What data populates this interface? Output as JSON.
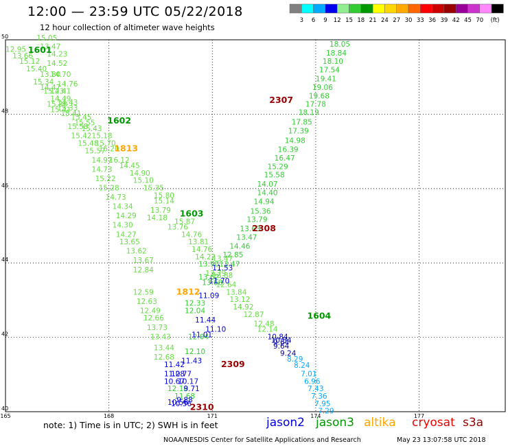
{
  "title": "12:00 — 23:59 UTC 05/22/2018",
  "subtitle": "12 hour collection of altimeter wave heights",
  "legend": {
    "unit": "(ft)",
    "ticks": [
      "3",
      "6",
      "9",
      "12",
      "15",
      "18",
      "21",
      "24",
      "27",
      "30",
      "33",
      "36",
      "39",
      "42",
      "45",
      "70"
    ],
    "colors": [
      "#808080",
      "#00ffff",
      "#00aaff",
      "#0000ee",
      "#90ee90",
      "#33cc33",
      "#009900",
      "#ffff00",
      "#ffd700",
      "#ffaa00",
      "#ff6600",
      "#ff0000",
      "#cc0000",
      "#990000",
      "#990099",
      "#cc33cc",
      "#ff88ff",
      "#000000"
    ]
  },
  "notes": "note:  1) Time is in UTC;  2) SWH is in feet",
  "satellites": [
    {
      "name": "jason2",
      "color": "#0000dd"
    },
    {
      "name": "jason3",
      "color": "#009900"
    },
    {
      "name": "altika",
      "color": "#ffa500"
    },
    {
      "name": "cryosat",
      "color": "#ee0000"
    },
    {
      "name": "s3a",
      "color": "#990000"
    }
  ],
  "footer": {
    "left": "NOAA/NESDIS Center for Satellite Applications and Research",
    "right": "May 23 13:07:58 UTC 2018"
  },
  "chart_data": {
    "type": "scatter",
    "x_ticks": [
      "165",
      "168",
      "171",
      "174",
      "177"
    ],
    "y_ticks": [
      "50",
      "48",
      "46",
      "44",
      "42",
      "40"
    ],
    "xlim": [
      165,
      179.5
    ],
    "ylim": [
      40,
      50
    ],
    "grid": true,
    "pass_labels": [
      {
        "text": "1601",
        "x": 166.0,
        "y": 49.65,
        "color": "#009900"
      },
      {
        "text": "1602",
        "x": 168.3,
        "y": 47.75,
        "color": "#009900"
      },
      {
        "text": "1813",
        "x": 168.5,
        "y": 47.0,
        "color": "#ffa500"
      },
      {
        "text": "1603",
        "x": 170.4,
        "y": 45.25,
        "color": "#009900"
      },
      {
        "text": "2307",
        "x": 173.0,
        "y": 48.3,
        "color": "#990000"
      },
      {
        "text": "2308",
        "x": 172.5,
        "y": 44.85,
        "color": "#990000"
      },
      {
        "text": "1812",
        "x": 170.3,
        "y": 43.15,
        "color": "#ffa500"
      },
      {
        "text": "1604",
        "x": 174.1,
        "y": 42.5,
        "color": "#009900"
      },
      {
        "text": "2309",
        "x": 171.6,
        "y": 41.2,
        "color": "#990000"
      },
      {
        "text": "2310",
        "x": 170.7,
        "y": 40.05,
        "color": "#990000"
      }
    ],
    "tracks": [
      {
        "name": "1601",
        "color": "#66dd44",
        "points": [
          [
            166.2,
            49.98,
            "15.05"
          ],
          [
            166.3,
            49.75,
            "13.47"
          ],
          [
            165.3,
            49.68,
            "12.95"
          ],
          [
            165.5,
            49.5,
            "13.66"
          ],
          [
            165.7,
            49.35,
            "15.12"
          ],
          [
            166.5,
            49.55,
            "14.23"
          ],
          [
            165.9,
            49.15,
            "15.40"
          ],
          [
            166.5,
            49.3,
            "14.52"
          ],
          [
            166.3,
            49.0,
            "13.80"
          ],
          [
            166.6,
            49.0,
            "14.70"
          ],
          [
            166.1,
            48.8,
            "15.34"
          ],
          [
            166.8,
            48.75,
            "14.76"
          ],
          [
            166.3,
            48.65,
            "14.47"
          ],
          [
            166.6,
            48.55,
            "14.41"
          ],
          [
            166.4,
            48.55,
            "15.23"
          ],
          [
            166.6,
            48.35,
            "14.49"
          ],
          [
            166.8,
            48.25,
            "14.43"
          ],
          [
            166.5,
            48.2,
            "15.30"
          ],
          [
            166.8,
            48.1,
            "15.33"
          ],
          [
            166.6,
            48.05,
            "15.41"
          ],
          [
            167.2,
            47.85,
            "15.45"
          ],
          [
            166.9,
            47.95,
            "15.41"
          ],
          [
            167.3,
            47.7,
            "15.55"
          ],
          [
            167.1,
            47.6,
            "15.58"
          ],
          [
            167.5,
            47.55,
            "15.43"
          ],
          [
            167.2,
            47.35,
            "15.42"
          ],
          [
            167.8,
            47.35,
            "15.18"
          ],
          [
            167.4,
            47.15,
            "15.48"
          ],
          [
            167.9,
            47.15,
            "15.70"
          ],
          [
            167.6,
            46.95,
            "15.57"
          ],
          [
            168.0,
            47.0,
            "16.20"
          ],
          [
            168.3,
            46.7,
            "16.12"
          ],
          [
            167.8,
            46.7,
            "14.97"
          ],
          [
            168.6,
            46.55,
            "14.45"
          ],
          [
            167.8,
            46.45,
            "14.73"
          ],
          [
            168.9,
            46.35,
            "14.90"
          ],
          [
            167.9,
            46.2,
            "15.22"
          ],
          [
            169.0,
            46.15,
            "15.10"
          ],
          [
            168.0,
            45.95,
            "15.28"
          ],
          [
            169.3,
            45.95,
            "15.35"
          ],
          [
            169.6,
            45.75,
            "15.80"
          ],
          [
            168.2,
            45.7,
            "14.73"
          ],
          [
            169.6,
            45.6,
            "15.14"
          ],
          [
            168.4,
            45.45,
            "14.34"
          ],
          [
            169.5,
            45.35,
            "13.79"
          ],
          [
            168.5,
            45.2,
            "14.29"
          ],
          [
            169.4,
            45.15,
            "14.18"
          ],
          [
            170.2,
            45.05,
            "15.87"
          ],
          [
            168.4,
            44.95,
            "14.30"
          ],
          [
            170.0,
            44.9,
            "13.76"
          ],
          [
            170.4,
            44.7,
            "14.76"
          ],
          [
            168.5,
            44.7,
            "14.27"
          ],
          [
            170.6,
            44.5,
            "13.81"
          ],
          [
            168.6,
            44.5,
            "13.65"
          ],
          [
            170.7,
            44.3,
            "14.76"
          ],
          [
            168.8,
            44.25,
            "13.62"
          ],
          [
            170.8,
            44.1,
            "14.22"
          ],
          [
            169.0,
            44.0,
            "13.67"
          ],
          [
            171.3,
            44.05,
            "13.47"
          ],
          [
            169.0,
            43.75,
            "12.84"
          ]
        ]
      },
      {
        "name": "2307",
        "color": "#33cc33",
        "points": [
          [
            174.7,
            49.82,
            "18.05"
          ],
          [
            174.6,
            49.58,
            "18.84"
          ],
          [
            174.5,
            49.35,
            "18.10"
          ],
          [
            174.4,
            49.12,
            "17.54"
          ],
          [
            174.3,
            48.88,
            "19.41"
          ],
          [
            174.2,
            48.65,
            "19.06"
          ],
          [
            174.1,
            48.42,
            "19.68"
          ],
          [
            174.0,
            48.2,
            "17.78"
          ],
          [
            173.8,
            47.98,
            "18.19"
          ],
          [
            173.6,
            47.72,
            "17.85"
          ],
          [
            173.5,
            47.48,
            "17.39"
          ],
          [
            173.4,
            47.22,
            "14.98"
          ],
          [
            173.2,
            46.98,
            "16.39"
          ],
          [
            173.1,
            46.75,
            "16.47"
          ],
          [
            172.9,
            46.52,
            "15.29"
          ],
          [
            172.8,
            46.3,
            "15.58"
          ],
          [
            172.6,
            46.05,
            "14.07"
          ],
          [
            172.6,
            45.82,
            "14.40"
          ],
          [
            172.5,
            45.58,
            "14.94"
          ],
          [
            172.4,
            45.32,
            "15.36"
          ],
          [
            172.3,
            45.1,
            "13.79"
          ],
          [
            172.1,
            44.85,
            "13.63"
          ],
          [
            172.0,
            44.62,
            "13.47"
          ],
          [
            171.8,
            44.38,
            "14.46"
          ],
          [
            171.6,
            44.15,
            "12.85"
          ],
          [
            171.5,
            43.9,
            "13.47"
          ]
        ]
      },
      {
        "name": "2308",
        "color": "#66dd44",
        "points": [
          [
            171.1,
            43.65,
            "13.79"
          ],
          [
            171.3,
            43.6,
            "13.88"
          ],
          [
            171.4,
            43.35,
            "12.64"
          ],
          [
            171.7,
            43.15,
            "13.84"
          ],
          [
            171.8,
            42.95,
            "13.12"
          ],
          [
            171.9,
            42.75,
            "14.92"
          ],
          [
            172.2,
            42.55,
            "12.87"
          ],
          [
            172.5,
            42.3,
            "12.48"
          ],
          [
            172.6,
            42.15,
            "12.14"
          ]
        ]
      },
      {
        "name": "1603",
        "color": "#33cc33",
        "points": [
          [
            170.9,
            43.9,
            "13.90"
          ],
          [
            170.9,
            43.55,
            "13.62"
          ],
          [
            171.0,
            43.4,
            "13.68"
          ],
          [
            170.5,
            42.85,
            "12.33"
          ],
          [
            170.5,
            42.65,
            "12.04"
          ],
          [
            170.6,
            41.95,
            "12.04"
          ],
          [
            170.5,
            41.55,
            "12.10"
          ],
          [
            170.0,
            40.55,
            "12.18"
          ],
          [
            170.2,
            40.35,
            "11.68"
          ]
        ]
      },
      {
        "name": "1812",
        "color": "#66dd44",
        "points": [
          [
            169.0,
            43.15,
            "12.59"
          ],
          [
            169.1,
            42.9,
            "12.63"
          ],
          [
            169.2,
            42.65,
            "12.49"
          ],
          [
            169.3,
            42.45,
            "12.66"
          ],
          [
            169.4,
            42.2,
            "13.73"
          ],
          [
            169.5,
            41.95,
            "13.43"
          ],
          [
            169.6,
            41.65,
            "13.44"
          ],
          [
            169.6,
            41.4,
            "12.68"
          ]
        ]
      },
      {
        "name": "jason2",
        "color": "#0000dd",
        "points": [
          [
            171.3,
            43.8,
            "11.53"
          ],
          [
            171.2,
            43.45,
            "11.70"
          ],
          [
            170.9,
            43.05,
            "11.09"
          ],
          [
            170.8,
            42.4,
            "11.44"
          ],
          [
            170.7,
            42.0,
            "11.01"
          ],
          [
            170.4,
            41.3,
            "11.43"
          ],
          [
            169.9,
            41.2,
            "11.42"
          ],
          [
            170.1,
            40.95,
            "10.77"
          ],
          [
            169.9,
            40.95,
            "11.28"
          ],
          [
            169.9,
            40.75,
            "10.67"
          ],
          [
            170.3,
            40.75,
            "10.17"
          ],
          [
            170.4,
            40.55,
            "9.71"
          ],
          [
            170.0,
            40.18,
            "10.56"
          ],
          [
            170.1,
            40.15,
            "10.56"
          ],
          [
            170.2,
            40.25,
            "9.88"
          ],
          [
            171.1,
            42.15,
            "11.10"
          ],
          [
            172.9,
            41.95,
            "10.84"
          ],
          [
            173.0,
            41.8,
            "9.64"
          ]
        ]
      },
      {
        "name": "2309",
        "color": "#000099",
        "points": [
          [
            173.0,
            41.85,
            "10.84"
          ],
          [
            173.0,
            41.7,
            "9.64"
          ],
          [
            173.2,
            41.5,
            "9.24"
          ]
        ]
      },
      {
        "name": "2310",
        "color": "#00aaff",
        "points": [
          [
            173.4,
            41.35,
            "8.29"
          ],
          [
            173.6,
            41.18,
            "8.24"
          ],
          [
            173.8,
            40.95,
            "7.01"
          ],
          [
            173.9,
            40.75,
            "6.96"
          ],
          [
            174.0,
            40.55,
            "7.43"
          ],
          [
            174.1,
            40.35,
            "7.36"
          ],
          [
            174.2,
            40.15,
            "7.95"
          ],
          [
            174.3,
            39.95,
            "7.29"
          ]
        ]
      }
    ]
  }
}
